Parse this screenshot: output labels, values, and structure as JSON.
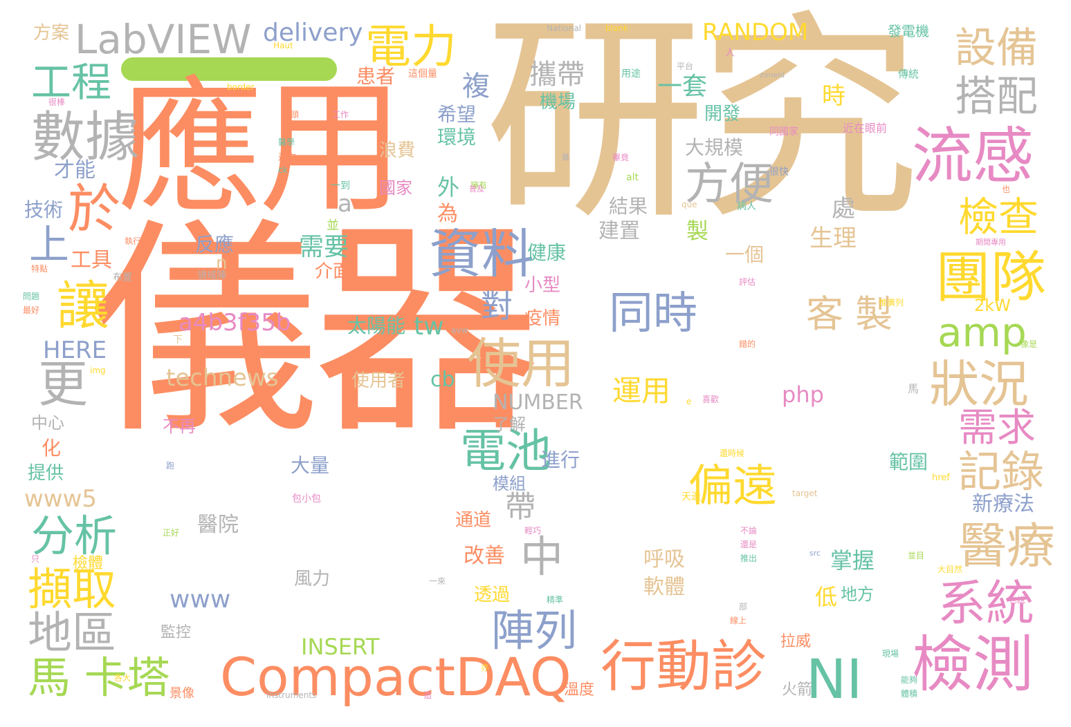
{
  "palette": {
    "orange": "#fc8d62",
    "tan": "#e5c494",
    "gray": "#b3b3b3",
    "blue": "#8da0cb",
    "pink": "#e78ac3",
    "green": "#a6d854",
    "teal": "#66c2a5",
    "yellow": "#ffd92f"
  },
  "words": [
    {
      "text": "儀器",
      "color": "orange"
    },
    {
      "text": "研究",
      "color": "tan"
    },
    {
      "text": "應用",
      "color": "orange"
    },
    {
      "text": "LabVIEW",
      "color": "gray"
    },
    {
      "text": "電力",
      "color": "yellow"
    },
    {
      "text": "設備",
      "color": "tan"
    },
    {
      "text": "工程",
      "color": "teal"
    },
    {
      "text": "數據",
      "color": "gray"
    },
    {
      "text": "搭配",
      "color": "gray"
    },
    {
      "text": "流感",
      "color": "pink"
    },
    {
      "text": "於",
      "color": "orange"
    },
    {
      "text": "方便",
      "color": "gray"
    },
    {
      "text": "資料",
      "color": "blue"
    },
    {
      "text": "檢查",
      "color": "yellow"
    },
    {
      "text": "上",
      "color": "blue"
    },
    {
      "text": "團隊",
      "color": "yellow"
    },
    {
      "text": "讓",
      "color": "yellow"
    },
    {
      "text": "同時",
      "color": "blue"
    },
    {
      "text": "客 製",
      "color": "tan"
    },
    {
      "text": "amp",
      "color": "green"
    },
    {
      "text": "使用",
      "color": "tan"
    },
    {
      "text": "更",
      "color": "gray"
    },
    {
      "text": "狀況",
      "color": "tan"
    },
    {
      "text": "需求",
      "color": "pink"
    },
    {
      "text": "電池",
      "color": "teal"
    },
    {
      "text": "記錄",
      "color": "tan"
    },
    {
      "text": "偏遠",
      "color": "yellow"
    },
    {
      "text": "分析",
      "color": "teal"
    },
    {
      "text": "中",
      "color": "gray"
    },
    {
      "text": "醫療",
      "color": "tan"
    },
    {
      "text": "擷取",
      "color": "yellow"
    },
    {
      "text": "系統",
      "color": "pink"
    },
    {
      "text": "地區",
      "color": "gray"
    },
    {
      "text": "陣列",
      "color": "blue"
    },
    {
      "text": "馬 卡塔",
      "color": "green"
    },
    {
      "text": "CompactDAQ",
      "color": "orange"
    },
    {
      "text": "行動診",
      "color": "orange"
    },
    {
      "text": "NI",
      "color": "teal"
    },
    {
      "text": "檢測",
      "color": "pink"
    },
    {
      "text": "delivery",
      "color": "blue"
    },
    {
      "text": "RANDOM",
      "color": "yellow"
    },
    {
      "text": "方案",
      "color": "tan"
    },
    {
      "text": "攜帶",
      "color": "gray"
    },
    {
      "text": "複",
      "color": "blue"
    },
    {
      "text": "一套",
      "color": "teal"
    },
    {
      "text": "患者",
      "color": "orange"
    },
    {
      "text": "機場",
      "color": "teal"
    },
    {
      "text": "希望",
      "color": "blue"
    },
    {
      "text": "環境",
      "color": "teal"
    },
    {
      "text": "開發",
      "color": "teal"
    },
    {
      "text": "時",
      "color": "yellow"
    },
    {
      "text": "大規模",
      "color": "gray"
    },
    {
      "text": "才能",
      "color": "blue"
    },
    {
      "text": "浪費",
      "color": "tan"
    },
    {
      "text": "國家",
      "color": "pink"
    },
    {
      "text": "外",
      "color": "teal"
    },
    {
      "text": "技術",
      "color": "blue"
    },
    {
      "text": "a",
      "color": "gray"
    },
    {
      "text": "為",
      "color": "orange"
    },
    {
      "text": "結果",
      "color": "gray"
    },
    {
      "text": "處",
      "color": "gray"
    },
    {
      "text": "建置",
      "color": "gray"
    },
    {
      "text": "製",
      "color": "green"
    },
    {
      "text": "生理",
      "color": "tan"
    },
    {
      "text": "需要",
      "color": "teal"
    },
    {
      "text": "反應",
      "color": "blue"
    },
    {
      "text": "工具",
      "color": "orange"
    },
    {
      "text": "n",
      "color": "tan"
    },
    {
      "text": "介面",
      "color": "orange"
    },
    {
      "text": "健康",
      "color": "teal"
    },
    {
      "text": "一個",
      "color": "tan"
    },
    {
      "text": "小型",
      "color": "pink"
    },
    {
      "text": "對",
      "color": "blue"
    },
    {
      "text": "疫情",
      "color": "orange"
    },
    {
      "text": "a4b3f35b",
      "color": "pink"
    },
    {
      "text": "太陽能",
      "color": "teal"
    },
    {
      "text": "tw",
      "color": "teal"
    },
    {
      "text": "HERE",
      "color": "blue"
    },
    {
      "text": "2kW",
      "color": "yellow"
    },
    {
      "text": "technews",
      "color": "tan"
    },
    {
      "text": "使用者",
      "color": "tan"
    },
    {
      "text": "cb",
      "color": "teal"
    },
    {
      "text": "NUMBER",
      "color": "gray"
    },
    {
      "text": "運用",
      "color": "yellow"
    },
    {
      "text": "php",
      "color": "pink"
    },
    {
      "text": "中心",
      "color": "gray"
    },
    {
      "text": "不再",
      "color": "pink"
    },
    {
      "text": "了解",
      "color": "gray"
    },
    {
      "text": "化",
      "color": "orange"
    },
    {
      "text": "提供",
      "color": "teal"
    },
    {
      "text": "大量",
      "color": "blue"
    },
    {
      "text": "進行",
      "color": "blue"
    },
    {
      "text": "模組",
      "color": "blue"
    },
    {
      "text": "範圍",
      "color": "teal"
    },
    {
      "text": "www5",
      "color": "tan"
    },
    {
      "text": "帶",
      "color": "gray"
    },
    {
      "text": "新療法",
      "color": "blue"
    },
    {
      "text": "醫院",
      "color": "gray"
    },
    {
      "text": "通道",
      "color": "orange"
    },
    {
      "text": "呼吸",
      "color": "tan"
    },
    {
      "text": "改善",
      "color": "orange"
    },
    {
      "text": "掌握",
      "color": "teal"
    },
    {
      "text": "檢體",
      "color": "yellow"
    },
    {
      "text": "風力",
      "color": "gray"
    },
    {
      "text": "軟體",
      "color": "tan"
    },
    {
      "text": "低",
      "color": "yellow"
    },
    {
      "text": "地方",
      "color": "teal"
    },
    {
      "text": "www",
      "color": "blue"
    },
    {
      "text": "透過",
      "color": "yellow"
    },
    {
      "text": "監控",
      "color": "gray"
    },
    {
      "text": "INSERT",
      "color": "green"
    },
    {
      "text": "拉威",
      "color": "orange"
    },
    {
      "text": "火箭",
      "color": "gray"
    },
    {
      "text": "溫度",
      "color": "orange"
    },
    {
      "text": "景像",
      "color": "orange"
    },
    {
      "text": "Instruments",
      "color": "gray"
    },
    {
      "text": "National",
      "color": "gray"
    },
    {
      "text": "blank",
      "color": "yellow"
    },
    {
      "text": "發電機",
      "color": "teal"
    },
    {
      "text": "border",
      "color": "yellow"
    },
    {
      "text": "這個量",
      "color": "orange"
    },
    {
      "text": "用途",
      "color": "teal"
    },
    {
      "text": "zoneid",
      "color": "gray"
    },
    {
      "text": "傳統",
      "color": "teal"
    },
    {
      "text": "近在眼前",
      "color": "pink"
    },
    {
      "text": "同國家",
      "color": "pink"
    },
    {
      "text": "很快",
      "color": "blue"
    },
    {
      "text": "alt",
      "color": "green"
    },
    {
      "text": "病人",
      "color": "teal"
    },
    {
      "text": "que",
      "color": "tan"
    },
    {
      "text": "領域陣",
      "color": "gray"
    },
    {
      "text": "布置",
      "color": "gray"
    },
    {
      "text": "img",
      "color": "yellow"
    },
    {
      "text": "avw",
      "color": "gray"
    },
    {
      "text": "src",
      "color": "blue"
    },
    {
      "text": "target",
      "color": "tan"
    },
    {
      "text": "href",
      "color": "yellow"
    },
    {
      "text": "天邊",
      "color": "yellow"
    },
    {
      "text": "包小包",
      "color": "pink"
    },
    {
      "text": "一到",
      "color": "teal"
    },
    {
      "text": "並",
      "color": "green"
    },
    {
      "text": "Haut",
      "color": "yellow"
    },
    {
      "text": "工作",
      "color": "pink"
    },
    {
      "text": "前頭",
      "color": "orange"
    },
    {
      "text": "還次",
      "color": "orange"
    },
    {
      "text": "醫學",
      "color": "teal"
    },
    {
      "text": "很棒",
      "color": "pink"
    },
    {
      "text": "執行",
      "color": "orange"
    },
    {
      "text": "特點",
      "color": "orange"
    },
    {
      "text": "問題",
      "color": "teal"
    },
    {
      "text": "最好",
      "color": "orange"
    },
    {
      "text": "只",
      "color": "pink"
    },
    {
      "text": "正好",
      "color": "green"
    },
    {
      "text": "跑",
      "color": "blue"
    },
    {
      "text": "雖",
      "color": "gray"
    },
    {
      "text": "擁有",
      "color": "green"
    },
    {
      "text": "輕巧",
      "color": "pink"
    },
    {
      "text": "精準",
      "color": "teal"
    },
    {
      "text": "一來",
      "color": "gray"
    },
    {
      "text": "還時候",
      "color": "yellow"
    },
    {
      "text": "不論",
      "color": "pink"
    },
    {
      "text": "還是",
      "color": "pink"
    },
    {
      "text": "推出",
      "color": "teal"
    },
    {
      "text": "能夠",
      "color": "teal"
    },
    {
      "text": "體積",
      "color": "teal"
    },
    {
      "text": "大目然",
      "color": "yellow"
    },
    {
      "text": "現場",
      "color": "teal"
    },
    {
      "text": "喜歡",
      "color": "pink"
    },
    {
      "text": "評估",
      "color": "pink"
    },
    {
      "text": "推廣列",
      "color": "yellow"
    },
    {
      "text": "像是",
      "color": "green"
    },
    {
      "text": "期間專用",
      "color": "pink"
    },
    {
      "text": "畢竟",
      "color": "pink"
    },
    {
      "text": "普及",
      "color": "pink"
    },
    {
      "text": "平台",
      "color": "gray"
    },
    {
      "text": "人",
      "color": "pink"
    },
    {
      "text": "也",
      "color": "orange"
    },
    {
      "text": "錯的",
      "color": "orange"
    },
    {
      "text": "馬",
      "color": "gray"
    },
    {
      "text": "下",
      "color": "tan"
    },
    {
      "text": "也說",
      "color": "pink"
    },
    {
      "text": "線上",
      "color": "orange"
    },
    {
      "text": "部",
      "color": "gray"
    },
    {
      "text": "各大",
      "color": "yellow"
    },
    {
      "text": "並目",
      "color": "green"
    },
    {
      "text": "亦",
      "color": "yellow"
    },
    {
      "text": "追",
      "color": "pink"
    },
    {
      "text": "e",
      "color": "yellow"
    },
    {
      "text": "ck",
      "color": "teal"
    }
  ]
}
